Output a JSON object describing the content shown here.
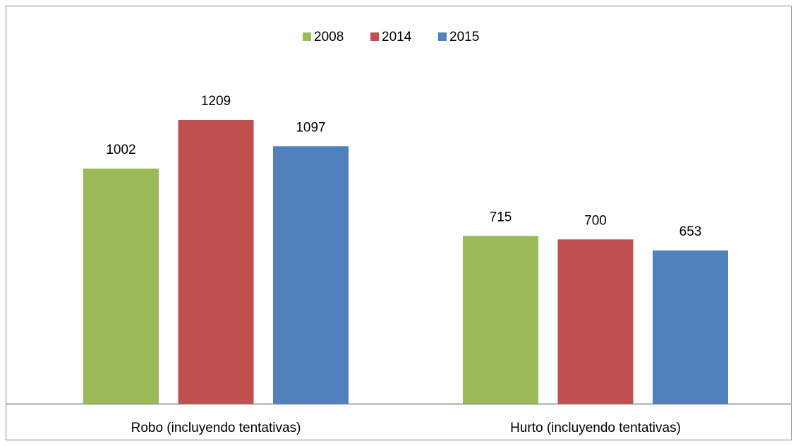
{
  "chart_data": {
    "type": "bar",
    "categories": [
      "Robo (incluyendo tentativas)",
      "Hurto (incluyendo tentativas)"
    ],
    "series": [
      {
        "name": "2008",
        "color": "#9bbb59",
        "values": [
          1002,
          715
        ]
      },
      {
        "name": "2014",
        "color": "#c0504d",
        "values": [
          1209,
          700
        ]
      },
      {
        "name": "2015",
        "color": "#4f81bd",
        "values": [
          1097,
          653
        ]
      }
    ],
    "ylim": [
      0,
      1400
    ],
    "legend": "top"
  }
}
